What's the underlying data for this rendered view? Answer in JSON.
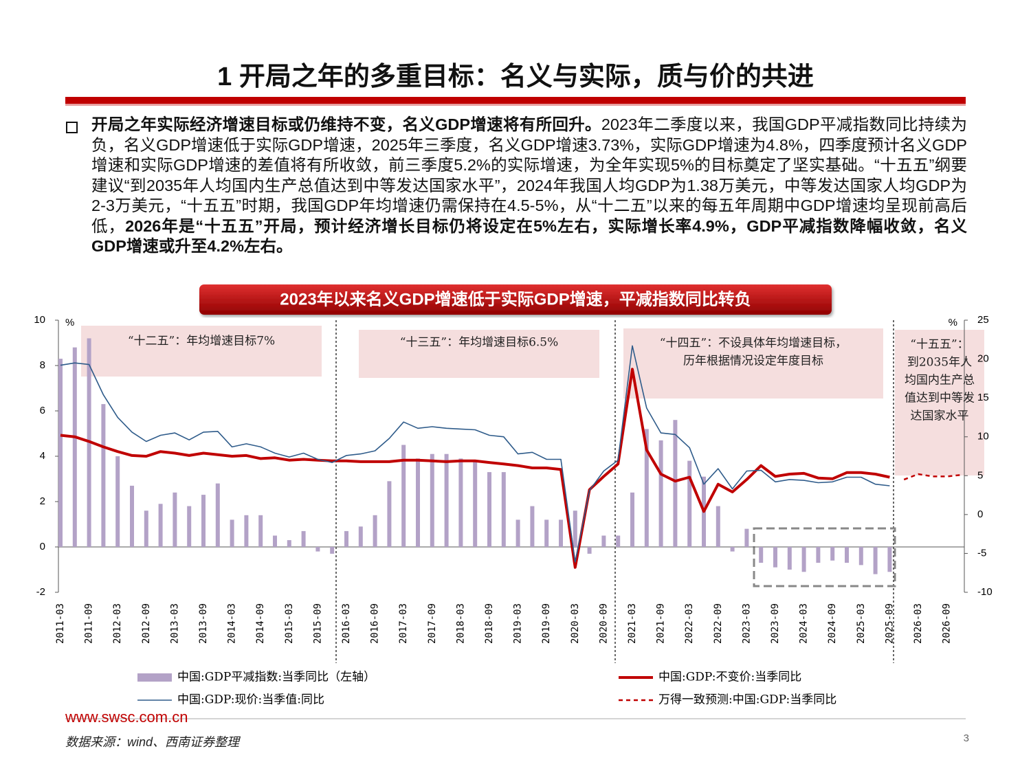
{
  "header": {
    "title": "1 开局之年的多重目标：名义与实际，质与价的共进"
  },
  "body": {
    "segments": [
      {
        "text": "开局之年实际经济增速目标或仍维持不变，名义GDP增速将有所回升。",
        "bold": true
      },
      {
        "text": "2023年二季度以来，我国GDP平减指数同比持续为负，名义GDP增速低于实际GDP增速，2025年三季度，名义GDP增速3.73%，实际GDP增速为4.8%，四季度预计名义GDP增速和实际GDP增速的差值将有所收敛，前三季度5.2%的实际增速，为全年实现5%的目标奠定了坚实基础。“十五五”纲要建议“到2035年人均国内生产总值达到中等发达国家水平”，2024年我国人均GDP为1.38万美元，中等发达国家人均GDP为2-3万美元，“十五五”时期，我国GDP年均增速仍需保持在4.5-5%，从“十二五”以来的每五年周期中GDP增速均呈现前高后低，",
        "bold": false
      },
      {
        "text": "2026年是“十五五”开局，预计经济增长目标仍将设定在5%左右，实际增长率4.9%，GDP平减指数降幅收敛，名义GDP增速或升至4.2%左右。",
        "bold": true
      }
    ]
  },
  "chart_data": {
    "type": "bar",
    "title": "2023年以来名义GDP增速低于实际GDP增速，平减指数同比转负",
    "y_unit": "%",
    "y2_unit": "%",
    "categories": [
      "2011-03",
      null,
      "2011-09",
      null,
      "2012-03",
      null,
      "2012-09",
      null,
      "2013-03",
      null,
      "2013-09",
      null,
      "2014-03",
      null,
      "2014-09",
      null,
      "2015-03",
      null,
      "2015-09",
      null,
      "2016-03",
      null,
      "2016-09",
      null,
      "2017-03",
      null,
      "2017-09",
      null,
      "2018-03",
      null,
      "2018-09",
      null,
      "2019-03",
      null,
      "2019-09",
      null,
      "2020-03",
      null,
      "2020-09",
      null,
      "2021-03",
      null,
      "2021-09",
      null,
      "2022-03",
      null,
      "2022-09",
      null,
      "2023-03",
      null,
      "2023-09",
      null,
      "2024-03",
      null,
      "2024-09",
      null,
      "2025-03",
      null,
      "2025-09",
      null,
      "2026-03",
      null,
      "2026-09",
      null
    ],
    "series": [
      {
        "name": "中国:GDP平减指数:当季同比（左轴）",
        "type": "bar",
        "color": "#b3a2c7",
        "values": [
          8.3,
          8.8,
          9.2,
          6.3,
          4.0,
          2.7,
          1.6,
          1.9,
          2.4,
          1.8,
          2.3,
          2.8,
          1.2,
          1.4,
          1.4,
          0.5,
          0.3,
          0.7,
          -0.2,
          -0.3,
          0.7,
          0.9,
          1.4,
          2.9,
          4.5,
          3.9,
          4.1,
          4.1,
          3.9,
          3.8,
          3.3,
          3.3,
          1.2,
          1.8,
          1.2,
          1.2,
          1.6,
          -0.3,
          0.5,
          0.5,
          2.4,
          5.2,
          4.7,
          5.6,
          3.8,
          3.1,
          1.8,
          -0.2,
          0.8,
          -0.7,
          -0.9,
          -1.0,
          -1.1,
          -0.7,
          -0.6,
          -0.7,
          -0.8,
          -1.2,
          -1.1,
          null,
          null,
          null,
          null,
          null
        ]
      },
      {
        "name": "中国:GDP:不变价:当季同比",
        "type": "line",
        "axis": "y2",
        "color": "#c00000",
        "values": [
          10.2,
          10.0,
          9.4,
          8.7,
          8.1,
          7.6,
          7.5,
          8.1,
          7.9,
          7.6,
          7.9,
          7.7,
          7.5,
          7.6,
          7.2,
          7.3,
          7.0,
          7.1,
          7.0,
          6.9,
          6.9,
          6.8,
          6.8,
          6.8,
          7.0,
          7.0,
          6.9,
          6.8,
          6.9,
          6.9,
          6.7,
          6.5,
          6.3,
          6.0,
          6.0,
          5.8,
          -6.8,
          3.2,
          4.9,
          6.5,
          18.7,
          8.3,
          5.2,
          4.3,
          4.8,
          0.4,
          3.9,
          2.9,
          4.5,
          6.3,
          4.9,
          5.2,
          5.3,
          4.7,
          4.6,
          5.4,
          5.4,
          5.2,
          4.8,
          null,
          null,
          null,
          null,
          null
        ]
      },
      {
        "name": "中国:GDP:现价:当季值:同比",
        "type": "line",
        "axis": "y2",
        "color": "#2e5b8a",
        "values": [
          19.2,
          19.5,
          19.3,
          15.4,
          12.5,
          10.6,
          9.4,
          10.2,
          10.5,
          9.6,
          10.6,
          10.7,
          8.7,
          9.1,
          8.7,
          7.9,
          7.4,
          7.9,
          7.1,
          6.7,
          7.6,
          7.8,
          8.2,
          9.8,
          11.9,
          11.1,
          11.3,
          11.1,
          11.0,
          10.9,
          10.2,
          10.0,
          7.8,
          8.0,
          7.1,
          7.1,
          -6.1,
          3.1,
          5.6,
          7.0,
          21.7,
          13.7,
          10.5,
          10.3,
          8.6,
          3.9,
          5.9,
          3.3,
          5.6,
          5.7,
          4.2,
          4.5,
          4.4,
          4.1,
          4.2,
          4.8,
          4.8,
          3.9,
          3.7,
          null,
          null,
          null,
          null,
          null
        ]
      },
      {
        "name": "万得一致预测:中国:GDP:当季同比",
        "type": "line",
        "axis": "y2",
        "color": "#c00000",
        "dashed": true,
        "values": [
          null,
          null,
          null,
          null,
          null,
          null,
          null,
          null,
          null,
          null,
          null,
          null,
          null,
          null,
          null,
          null,
          null,
          null,
          null,
          null,
          null,
          null,
          null,
          null,
          null,
          null,
          null,
          null,
          null,
          null,
          null,
          null,
          null,
          null,
          null,
          null,
          null,
          null,
          null,
          null,
          null,
          null,
          null,
          null,
          null,
          null,
          null,
          null,
          null,
          null,
          null,
          null,
          null,
          null,
          null,
          null,
          null,
          null,
          null,
          4.5,
          5.2,
          4.9,
          4.9,
          5.1
        ]
      }
    ],
    "ylim": [
      -2,
      10
    ],
    "yticks": [
      -2,
      0,
      2,
      4,
      6,
      8,
      10
    ],
    "y2lim": [
      -10,
      25
    ],
    "y2ticks": [
      -10,
      -5,
      0,
      5,
      10,
      15,
      20,
      25
    ],
    "grid": false,
    "annotations": [
      [
        "“十二五”：年均增速目标7%"
      ],
      [
        "“十三五”：年均增速目标6.5%"
      ],
      [
        "“十四五”：不设具体年均增速目标，",
        "历年根据情况设定年度目标"
      ],
      [
        "“十五五”：",
        "到2035年人",
        "均国内生产总",
        "值达到中等发",
        "达国家水平"
      ]
    ]
  },
  "footer": {
    "website": "www.swsc.com.cn",
    "source": "数据来源：wind、西南证券整理",
    "page": "3"
  }
}
